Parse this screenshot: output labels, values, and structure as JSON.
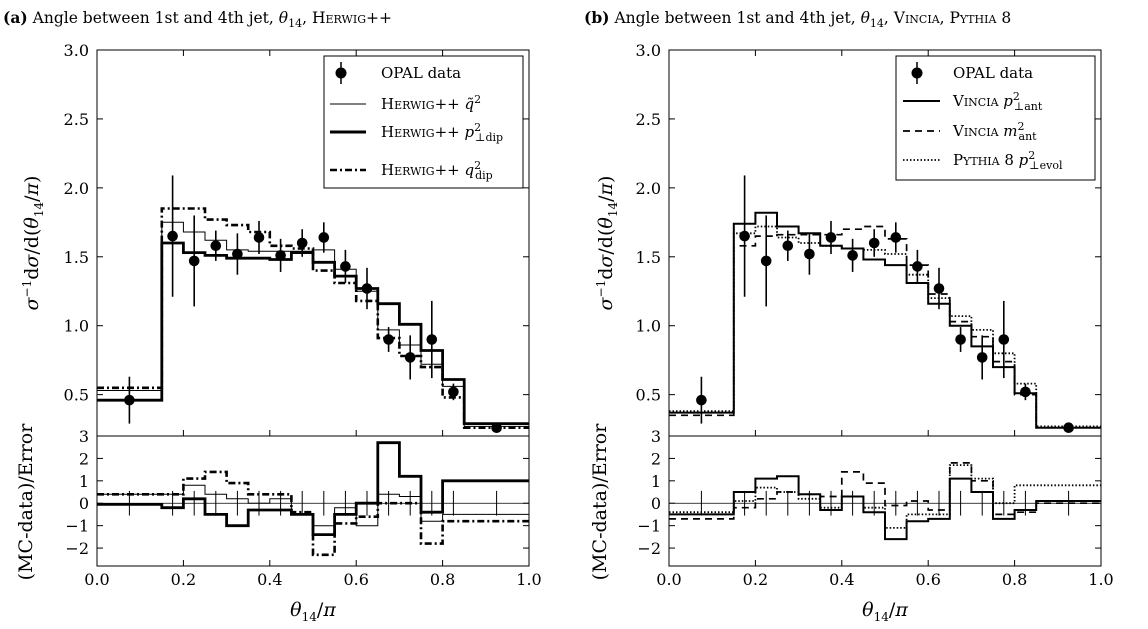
{
  "chart_data": [
    {
      "type": "line",
      "panel_letter": "(a)",
      "title": "Angle between 1st and 4th jet, θ14, Herwig++",
      "title_plain": "Angle between 1st and 4th jet, ",
      "title_suffix": "Herwig++",
      "xlabel": "θ14/π",
      "ylabel_main": "σ⁻¹dσ/d(θ14/π)",
      "ylabel_ratio": "(MC-data)/Error",
      "xlim": [
        0.0,
        1.0
      ],
      "ylim_main": [
        0.2,
        3.0
      ],
      "ylim_ratio": [
        -2.8,
        3.0
      ],
      "xticks": [
        "0.0",
        "0.2",
        "0.4",
        "0.6",
        "0.8",
        "1.0"
      ],
      "yticks_main": [
        "0.5",
        "1.0",
        "1.5",
        "2.0",
        "2.5",
        "3.0"
      ],
      "yticks_ratio": [
        "−2",
        "−1",
        "0",
        "1",
        "2",
        "3"
      ],
      "legend_position": "top-right",
      "bin_edges": [
        0.0,
        0.15,
        0.2,
        0.25,
        0.3,
        0.35,
        0.4,
        0.45,
        0.5,
        0.55,
        0.6,
        0.65,
        0.7,
        0.75,
        0.8,
        0.85,
        1.0
      ],
      "data": {
        "name": "OPAL data",
        "x": [
          0.075,
          0.175,
          0.225,
          0.275,
          0.325,
          0.375,
          0.425,
          0.475,
          0.525,
          0.575,
          0.625,
          0.675,
          0.725,
          0.775,
          0.825,
          0.925
        ],
        "y": [
          0.46,
          1.65,
          1.47,
          1.58,
          1.52,
          1.64,
          1.51,
          1.6,
          1.64,
          1.43,
          1.27,
          0.9,
          0.77,
          0.9,
          0.52,
          0.26
        ],
        "err": [
          0.17,
          0.44,
          0.33,
          0.11,
          0.15,
          0.12,
          0.12,
          0.1,
          0.11,
          0.12,
          0.15,
          0.09,
          0.16,
          0.28,
          0.06,
          0.02
        ]
      },
      "series": [
        {
          "name": "Herwig++ q̃²",
          "style": "thin",
          "values": [
            0.53,
            1.75,
            1.68,
            1.62,
            1.55,
            1.54,
            1.54,
            1.54,
            1.55,
            1.41,
            1.25,
            0.97,
            0.86,
            0.72,
            0.56,
            0.27
          ],
          "ratio": [
            0.4,
            0.4,
            0.8,
            0.4,
            0.2,
            0.0,
            0.2,
            -0.5,
            -1.0,
            -0.2,
            -1.0,
            0.4,
            0.3,
            -0.8,
            -0.5,
            -0.5
          ]
        },
        {
          "name": "Herwig++ p²⊥dip",
          "style": "thick",
          "values": [
            0.46,
            1.6,
            1.53,
            1.51,
            1.49,
            1.49,
            1.48,
            1.53,
            1.46,
            1.36,
            1.27,
            1.16,
            1.01,
            0.82,
            0.61,
            0.29
          ],
          "ratio": [
            -0.05,
            -0.2,
            0.2,
            -0.5,
            -1.0,
            -0.3,
            -0.3,
            -0.5,
            -1.4,
            -0.5,
            0.0,
            2.7,
            1.2,
            -0.4,
            1.0,
            1.0
          ]
        },
        {
          "name": "Herwig++ q²dip",
          "style": "dashdot",
          "values": [
            0.55,
            1.85,
            1.85,
            1.77,
            1.73,
            1.68,
            1.58,
            1.56,
            1.4,
            1.31,
            1.18,
            0.91,
            0.78,
            0.7,
            0.48,
            0.26
          ],
          "ratio": [
            0.4,
            0.4,
            1.1,
            1.4,
            0.9,
            0.4,
            0.4,
            -0.4,
            -2.3,
            -0.9,
            -0.6,
            0.0,
            0.0,
            -1.8,
            -0.8,
            -0.8
          ]
        }
      ]
    },
    {
      "type": "line",
      "panel_letter": "(b)",
      "title": "Angle between 1st and 4th jet, θ14, Vincia, Pythia 8",
      "title_plain": "Angle between 1st and 4th jet, ",
      "title_suffix": "Vincia, Pythia 8",
      "xlabel": "θ14/π",
      "ylabel_main": "σ⁻¹dσ/d(θ14/π)",
      "ylabel_ratio": "(MC-data)/Error",
      "xlim": [
        0.0,
        1.0
      ],
      "ylim_main": [
        0.2,
        3.0
      ],
      "ylim_ratio": [
        -2.8,
        3.0
      ],
      "xticks": [
        "0.0",
        "0.2",
        "0.4",
        "0.6",
        "0.8",
        "1.0"
      ],
      "yticks_main": [
        "0.5",
        "1.0",
        "1.5",
        "2.0",
        "2.5",
        "3.0"
      ],
      "yticks_ratio": [
        "−2",
        "−1",
        "0",
        "1",
        "2",
        "3"
      ],
      "legend_position": "top-right",
      "bin_edges": [
        0.0,
        0.15,
        0.2,
        0.25,
        0.3,
        0.35,
        0.4,
        0.45,
        0.5,
        0.55,
        0.6,
        0.65,
        0.7,
        0.75,
        0.8,
        0.85,
        1.0
      ],
      "data": {
        "name": "OPAL data",
        "x": [
          0.075,
          0.175,
          0.225,
          0.275,
          0.325,
          0.375,
          0.425,
          0.475,
          0.525,
          0.575,
          0.625,
          0.675,
          0.725,
          0.775,
          0.825,
          0.925
        ],
        "y": [
          0.46,
          1.65,
          1.47,
          1.58,
          1.52,
          1.64,
          1.51,
          1.6,
          1.64,
          1.43,
          1.27,
          0.9,
          0.77,
          0.9,
          0.52,
          0.26
        ],
        "err": [
          0.17,
          0.44,
          0.33,
          0.11,
          0.15,
          0.12,
          0.12,
          0.1,
          0.11,
          0.12,
          0.15,
          0.09,
          0.16,
          0.28,
          0.06,
          0.02
        ]
      },
      "series": [
        {
          "name": "Vincia p²⊥ant",
          "style": "solid",
          "values": [
            0.37,
            1.74,
            1.82,
            1.72,
            1.67,
            1.58,
            1.56,
            1.48,
            1.44,
            1.31,
            1.16,
            1.0,
            0.85,
            0.7,
            0.51,
            0.26
          ],
          "ratio": [
            -0.5,
            0.5,
            1.1,
            1.2,
            0.4,
            -0.3,
            0.3,
            -0.4,
            -1.6,
            -0.8,
            -0.7,
            1.1,
            0.5,
            -0.7,
            -0.3,
            0.1
          ]
        },
        {
          "name": "Vincia m²ant",
          "style": "dashed",
          "values": [
            0.35,
            1.58,
            1.65,
            1.66,
            1.66,
            1.66,
            1.7,
            1.72,
            1.63,
            1.44,
            1.23,
            1.03,
            0.92,
            0.74,
            0.5,
            0.26
          ],
          "ratio": [
            -0.7,
            -0.2,
            0.2,
            0.5,
            0.4,
            0.3,
            1.4,
            0.9,
            -0.1,
            0.1,
            -0.3,
            1.8,
            1.0,
            -0.5,
            -0.4,
            0.0
          ]
        },
        {
          "name": "Pythia 8 p²⊥evol",
          "style": "dotted",
          "values": [
            0.38,
            1.67,
            1.72,
            1.64,
            1.6,
            1.58,
            1.56,
            1.55,
            1.52,
            1.37,
            1.2,
            1.07,
            0.97,
            0.8,
            0.58,
            0.27
          ],
          "ratio": [
            -0.4,
            0.1,
            0.7,
            0.5,
            0.2,
            -0.2,
            0.3,
            -0.2,
            -1.1,
            -0.5,
            -0.5,
            1.7,
            1.1,
            0.0,
            0.8,
            0.8
          ]
        }
      ]
    }
  ]
}
